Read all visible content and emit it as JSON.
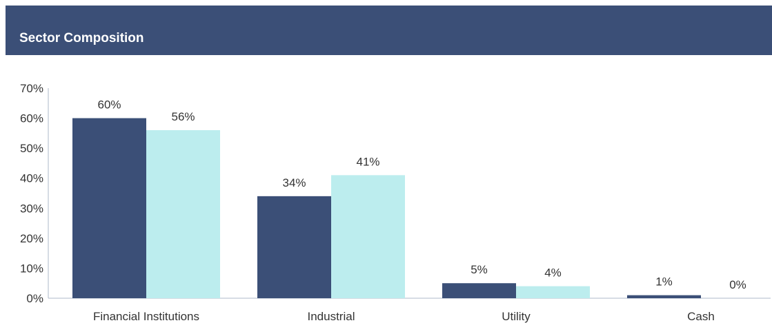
{
  "header": {
    "title": "Sector Composition"
  },
  "colors": {
    "header_bg": "#3b4f77",
    "series_1": "#3b4f77",
    "series_2": "#bcedee",
    "axis": "#aeb8c9",
    "text": "#333333"
  },
  "chart_data": {
    "type": "bar",
    "title": "Sector Composition",
    "xlabel": "",
    "ylabel": "",
    "categories": [
      "Financial Institutions",
      "Industrial",
      "Utility",
      "Cash"
    ],
    "series": [
      {
        "values": [
          60,
          34,
          5,
          1
        ],
        "labels": [
          "60%",
          "34%",
          "5%",
          "1%"
        ]
      },
      {
        "values": [
          56,
          41,
          4,
          0
        ],
        "labels": [
          "56%",
          "41%",
          "4%",
          "0%"
        ]
      }
    ],
    "ylim": [
      0,
      70
    ],
    "yticks": [
      0,
      10,
      20,
      30,
      40,
      50,
      60,
      70
    ],
    "ytick_labels": [
      "0%",
      "10%",
      "20%",
      "30%",
      "40%",
      "50%",
      "60%",
      "70%"
    ],
    "grid": false,
    "legend": "none"
  }
}
